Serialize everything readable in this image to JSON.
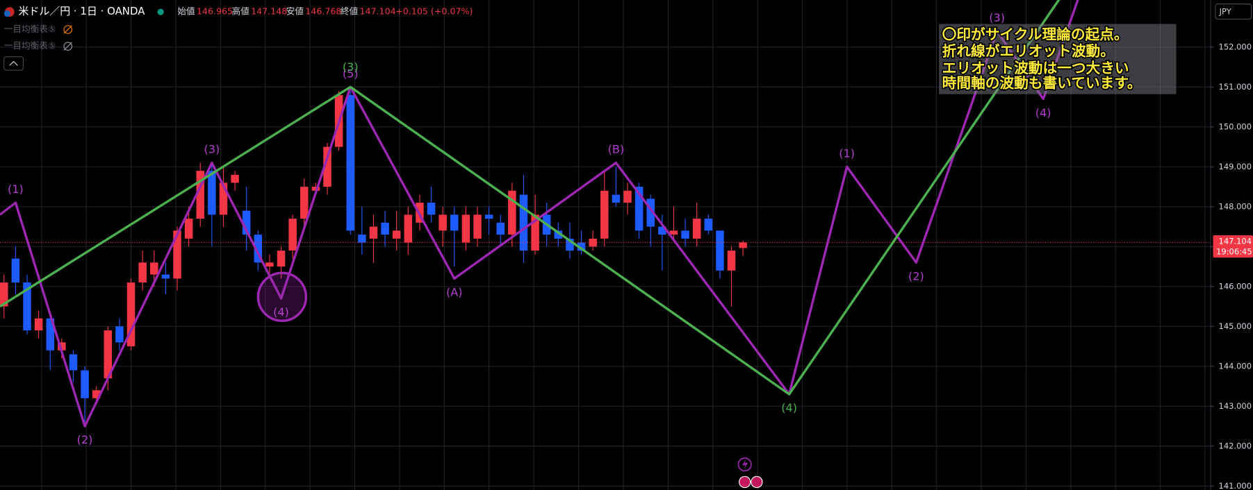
{
  "header": {
    "symbol": "米ドル／円 · 1日 · OANDA",
    "open_label": "始値",
    "open": 146.965,
    "high_label": "高値",
    "high": 147.148,
    "low_label": "安値",
    "low": 146.768,
    "close_label": "終値",
    "close": 147.104,
    "change": "+0.105 (+0.07%)",
    "indicators": [
      "一目均衡表⑤",
      "一目均衡表⑤"
    ],
    "currency": "JPY"
  },
  "chart_data": {
    "type": "candlestick",
    "open": [
      145.5,
      146.7,
      146.1,
      144.9,
      145.2,
      144.4,
      144.3,
      143.9,
      143.2,
      143.7,
      145.0,
      144.5,
      146.1,
      146.3,
      146.3,
      146.2,
      147.2,
      147.7,
      148.9,
      147.8,
      148.6,
      147.9,
      147.3,
      146.5,
      146.5,
      146.9,
      147.7,
      148.4,
      148.5,
      149.5,
      150.8,
      147.3,
      147.2,
      147.6,
      147.2,
      147.1,
      147.6,
      148.1,
      147.4,
      147.8,
      147.1,
      147.2,
      147.8,
      147.6,
      147.3,
      148.3,
      146.9,
      147.8,
      147.4,
      147.2,
      147.1,
      147.0,
      147.2,
      148.3,
      148.1,
      148.5,
      148.2,
      147.5,
      147.3,
      147.4,
      147.2,
      147.7,
      147.4,
      146.4,
      146.965
    ],
    "high": [
      146.3,
      147.0,
      146.3,
      145.4,
      145.3,
      144.7,
      144.4,
      144.0,
      143.5,
      145.0,
      145.2,
      146.2,
      146.9,
      146.9,
      146.6,
      147.5,
      148.0,
      149.1,
      149.1,
      149.0,
      148.9,
      148.5,
      147.4,
      146.8,
      147.0,
      147.8,
      148.7,
      148.6,
      149.6,
      150.9,
      150.9,
      148.0,
      147.8,
      147.9,
      147.9,
      148.0,
      148.3,
      148.5,
      148.0,
      148.0,
      148.0,
      148.0,
      148.0,
      147.8,
      148.6,
      148.8,
      148.3,
      148.1,
      147.6,
      147.6,
      147.4,
      147.4,
      148.9,
      149.0,
      148.6,
      148.6,
      148.3,
      147.8,
      148.0,
      147.7,
      148.1,
      147.8,
      147.4,
      147.0,
      147.148
    ],
    "low": [
      145.2,
      145.8,
      144.8,
      144.7,
      143.9,
      144.2,
      143.6,
      142.6,
      143.1,
      143.4,
      144.4,
      144.4,
      145.9,
      146.0,
      145.8,
      145.9,
      147.0,
      147.5,
      147.0,
      147.5,
      148.4,
      146.9,
      146.4,
      146.3,
      146.2,
      146.7,
      147.5,
      148.3,
      148.3,
      149.4,
      147.3,
      146.8,
      146.6,
      147.0,
      146.9,
      146.8,
      147.4,
      147.6,
      147.0,
      146.5,
      146.9,
      147.0,
      147.3,
      147.0,
      147.0,
      146.6,
      146.8,
      147.0,
      147.0,
      146.7,
      146.8,
      146.9,
      147.0,
      148.0,
      147.8,
      147.2,
      147.0,
      146.4,
      147.2,
      147.0,
      147.0,
      147.3,
      146.2,
      145.5,
      146.768
    ],
    "close": [
      146.1,
      146.1,
      144.9,
      145.2,
      144.4,
      144.6,
      143.9,
      143.2,
      143.4,
      144.9,
      144.6,
      146.1,
      146.6,
      146.6,
      146.2,
      147.4,
      147.7,
      148.9,
      147.8,
      148.6,
      148.8,
      147.3,
      146.6,
      146.6,
      146.9,
      147.7,
      148.5,
      148.5,
      149.5,
      150.8,
      147.4,
      147.1,
      147.5,
      147.3,
      147.4,
      147.8,
      148.1,
      147.8,
      147.8,
      147.4,
      147.8,
      147.8,
      147.7,
      147.3,
      148.4,
      146.9,
      147.8,
      147.3,
      147.2,
      146.9,
      146.9,
      147.2,
      148.4,
      148.1,
      148.4,
      147.4,
      147.5,
      147.3,
      147.4,
      147.2,
      147.7,
      147.4,
      146.4,
      146.9,
      147.104
    ],
    "up_color": "#f23645",
    "down_color": "#1e5bff",
    "lines": [
      {
        "color": "#9c27b0",
        "label_color": "#b43fd0",
        "x": [
          -0.35,
          1,
          7,
          18,
          24,
          30,
          39,
          53,
          68,
          73,
          79,
          86,
          90,
          93.5
        ],
        "values": [
          147.8,
          148.1,
          142.5,
          149.1,
          145.7,
          151.0,
          146.2,
          149.1,
          143.3,
          149.0,
          146.6,
          152.4,
          150.7,
          153.6
        ],
        "labels": [
          null,
          "(1)",
          "(2)",
          "(3)",
          "(4)",
          "(5)",
          "(A)",
          "(B)",
          null,
          "(1)",
          "(2)",
          "(3)",
          "(4)",
          null
        ]
      },
      {
        "color": "#4caf50",
        "label_color": "#4caf50",
        "x": [
          -0.35,
          30,
          68,
          92.1
        ],
        "values": [
          145.5,
          151.0,
          143.3,
          153.5
        ],
        "labels": [
          null,
          "(3)",
          "(4)",
          null
        ]
      }
    ],
    "ylim": [
      140.9,
      153.18
    ],
    "yticks": [
      {
        "value": 141,
        "label": "141.000"
      },
      {
        "value": 142,
        "label": "142.000"
      },
      {
        "value": 143,
        "label": "143.000"
      },
      {
        "value": 144,
        "label": "144.000"
      },
      {
        "value": 145,
        "label": "145.000"
      },
      {
        "value": 146,
        "label": "146.000"
      },
      {
        "value": 147,
        "label": "147.000"
      },
      {
        "value": 148,
        "label": "148.000"
      },
      {
        "value": 149,
        "label": "149.000"
      },
      {
        "value": 150,
        "label": "150.000"
      },
      {
        "value": 151,
        "label": "151.000"
      },
      {
        "value": 152,
        "label": "152.000"
      }
    ],
    "grid": true,
    "countdown": "19:06:45",
    "annotation": [
      "〇印がサイクル理論の起点。",
      "折れ線がエリオット波動。",
      "エリオット波動は一つ大きい",
      "時間軸の波動も書いています。"
    ]
  }
}
